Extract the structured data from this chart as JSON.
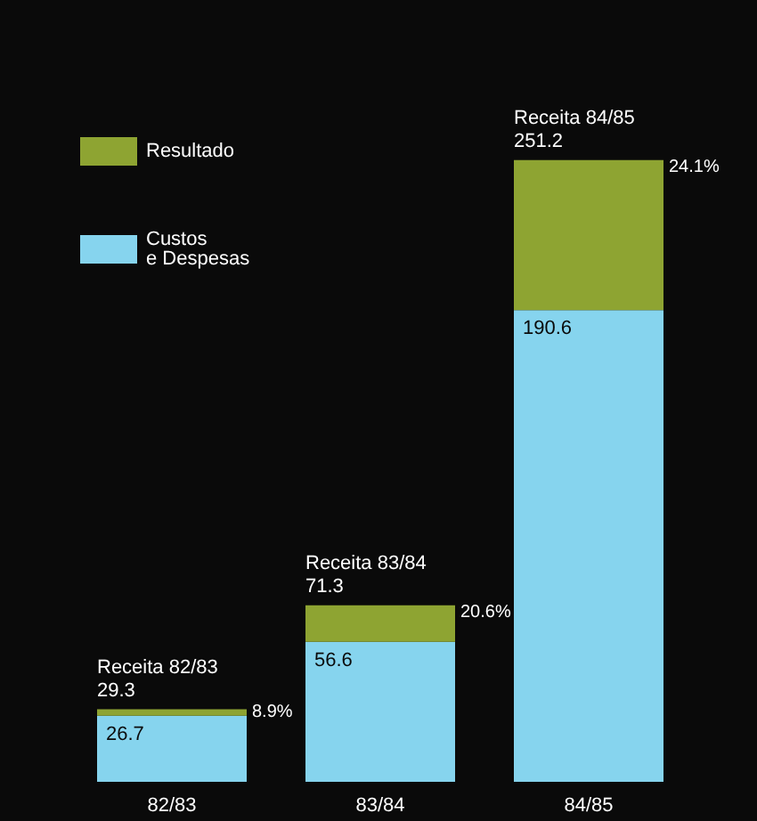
{
  "chart_data": {
    "type": "bar",
    "stacked": true,
    "categories": [
      "82/83",
      "83/84",
      "84/85"
    ],
    "series": [
      {
        "name": "Custos\ne Despesas",
        "color": "#86d4ee",
        "values": [
          26.7,
          56.6,
          190.6
        ],
        "value_labels": [
          "26.7",
          "56.6",
          "190.6"
        ]
      },
      {
        "name": "Resultado",
        "color": "#8ea432",
        "values": [
          2.6,
          14.7,
          60.6
        ]
      }
    ],
    "totals": [
      "29.3",
      "71.3",
      "251.2"
    ],
    "annotations": [
      {
        "text": "Receita 82/83",
        "x": "82/83",
        "y": 29.3
      },
      {
        "text": "Receita 83/84",
        "x": "83/84",
        "y": 71.3
      },
      {
        "text": "Receita 84/85",
        "x": "84/85",
        "y": 251.2
      },
      "8.9%",
      "20.6%",
      "24.1%"
    ],
    "legend": "top left"
  }
}
